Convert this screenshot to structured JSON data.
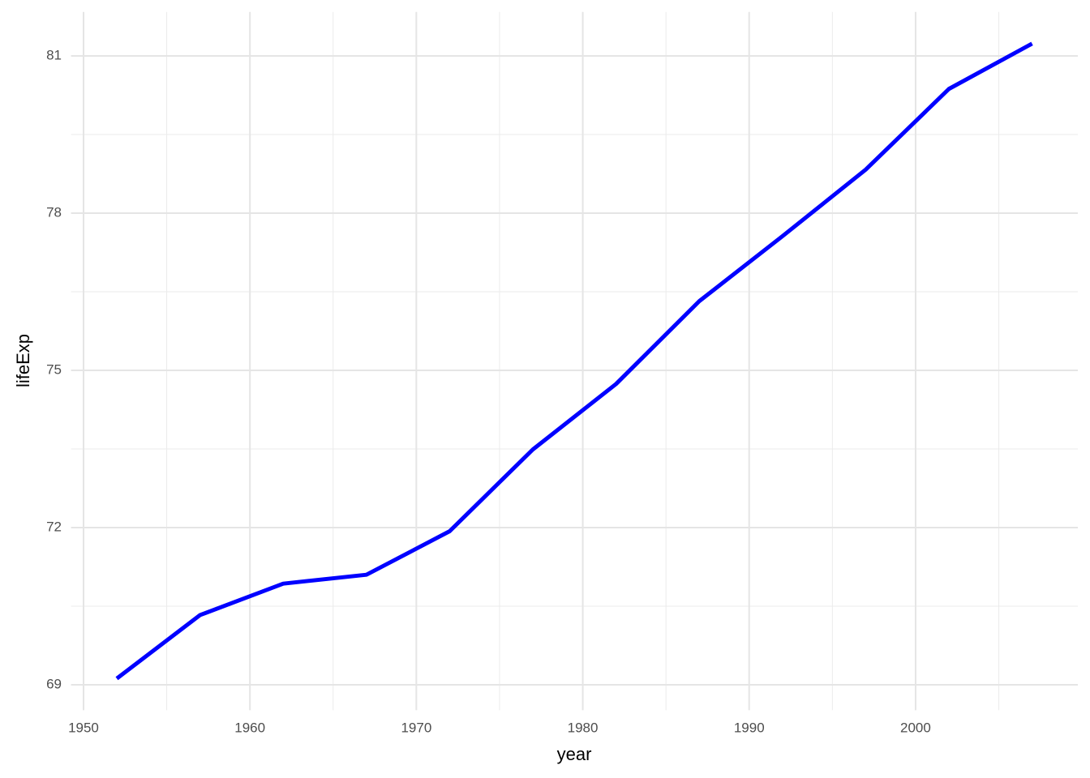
{
  "chart_data": {
    "type": "line",
    "x_label": "year",
    "y_label": "lifeExp",
    "x": [
      1952,
      1957,
      1962,
      1967,
      1972,
      1977,
      1982,
      1987,
      1992,
      1997,
      2002,
      2007
    ],
    "series": [
      {
        "color": "#0000ff",
        "values": [
          69.12,
          70.33,
          70.93,
          71.1,
          71.93,
          73.49,
          74.74,
          76.32,
          77.56,
          78.83,
          80.37,
          81.235
        ]
      }
    ],
    "xlim": [
      1949.25,
      2009.75
    ],
    "ylim": [
      68.514,
      81.84
    ],
    "xticks": [
      1950,
      1960,
      1970,
      1980,
      1990,
      2000
    ],
    "yticks": [
      69,
      72,
      75,
      78,
      81
    ],
    "xticks_minor": [
      1955,
      1965,
      1975,
      1985,
      1995,
      2005
    ],
    "yticks_minor": [
      70.5,
      73.5,
      76.5,
      79.5
    ],
    "grid": true
  }
}
